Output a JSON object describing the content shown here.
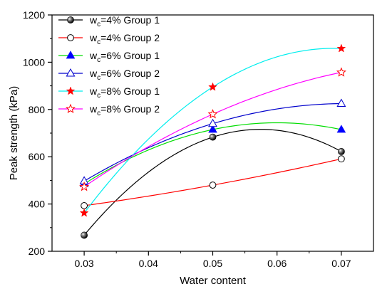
{
  "chart_data": {
    "type": "scatter",
    "xlabel": "Water content",
    "ylabel": "Peak strength (kPa)",
    "xlim": [
      0.025,
      0.075
    ],
    "ylim": [
      200,
      1200
    ],
    "xticks": [
      0.03,
      0.04,
      0.05,
      0.06,
      0.07
    ],
    "yticks": [
      200,
      400,
      600,
      800,
      1000,
      1200
    ],
    "xtick_labels": [
      "0.03",
      "0.04",
      "0.05",
      "0.06",
      "0.07"
    ],
    "ytick_labels": [
      "200",
      "400",
      "600",
      "800",
      "1000",
      "1200"
    ],
    "legend_position": "top-left",
    "grid": false,
    "x": [
      0.03,
      0.05,
      0.07
    ],
    "series": [
      {
        "name": "w",
        "name_sub": "c",
        "name_rest": "=4% Group 1",
        "values": [
          268,
          683,
          622
        ],
        "color": "#000000",
        "marker": "ball",
        "curve": "spline"
      },
      {
        "name": "w",
        "name_sub": "c",
        "name_rest": "=4% Group 2",
        "values": [
          393,
          480,
          591
        ],
        "color": "#ff0000",
        "marker": "open-circle",
        "curve": "spline"
      },
      {
        "name": "w",
        "name_sub": "c",
        "name_rest": "=6% Group 1",
        "values": [
          485,
          715,
          715
        ],
        "color": "#00dd00",
        "marker": "filled-triangle",
        "curve": "spline",
        "marker_color": "#0000ff"
      },
      {
        "name": "w",
        "name_sub": "c",
        "name_rest": "=6% Group 2",
        "values": [
          497,
          740,
          825
        ],
        "color": "#0000cc",
        "marker": "open-triangle",
        "curve": "spline"
      },
      {
        "name": "w",
        "name_sub": "c",
        "name_rest": "=8% Group 1",
        "values": [
          362,
          895,
          1058
        ],
        "color": "#00eeee",
        "marker": "filled-star",
        "curve": "spline",
        "marker_color": "#ff0000"
      },
      {
        "name": "w",
        "name_sub": "c",
        "name_rest": "=8% Group 2",
        "values": [
          473,
          780,
          957
        ],
        "color": "#ff00ff",
        "marker": "open-star",
        "curve": "spline",
        "marker_color": "#ff0000"
      }
    ]
  }
}
